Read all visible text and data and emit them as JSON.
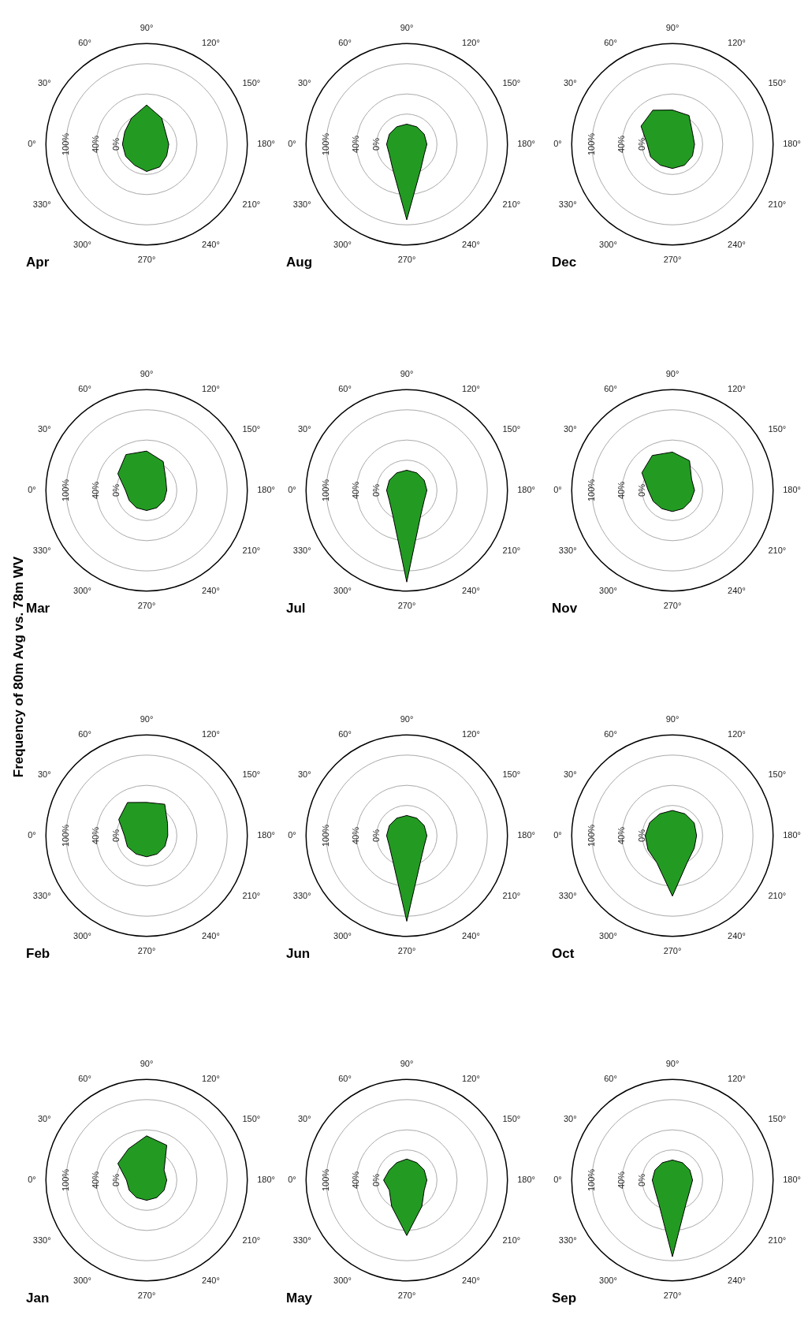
{
  "chart_data": [
    {
      "type": "other",
      "title": "Frequency of 80m Avg vs. 78m WV"
    },
    {
      "type": "radar",
      "title": "Jan",
      "categories": [
        "0°",
        "30°",
        "60°",
        "90°",
        "120°",
        "150°",
        "180°",
        "210°",
        "240°",
        "270°",
        "300°",
        "330°"
      ],
      "ylim": [
        -60,
        140
      ],
      "yticks": [
        {
          "value": 0,
          "label": "0%"
        },
        {
          "value": 40,
          "label": "40%"
        },
        {
          "value": 100,
          "label": "100%"
        }
      ],
      "grid": true,
      "series": [
        {
          "color": "#239b23",
          "values": [
            -20,
            6,
            12,
            28,
            20,
            -20,
            -20,
            -20,
            -20,
            -20,
            -20,
            -20
          ]
        }
      ]
    },
    {
      "type": "radar",
      "title": "Feb",
      "categories": [
        "0°",
        "30°",
        "60°",
        "90°",
        "120°",
        "150°",
        "180°",
        "210°",
        "240°",
        "270°",
        "300°",
        "330°"
      ],
      "ylim": [
        -60,
        140
      ],
      "yticks": [
        {
          "value": 0,
          "label": "0%"
        },
        {
          "value": 40,
          "label": "40%"
        },
        {
          "value": 100,
          "label": "100%"
        }
      ],
      "grid": true,
      "series": [
        {
          "color": "#239b23",
          "values": [
            -16,
            4,
            16,
            6,
            12,
            -12,
            -18,
            -18,
            -18,
            -18,
            -18,
            -16
          ]
        }
      ]
    },
    {
      "type": "radar",
      "title": "Mar",
      "categories": [
        "0°",
        "30°",
        "60°",
        "90°",
        "120°",
        "150°",
        "180°",
        "210°",
        "240°",
        "270°",
        "300°",
        "330°"
      ],
      "ylim": [
        -60,
        140
      ],
      "yticks": [
        {
          "value": 0,
          "label": "0%"
        },
        {
          "value": 40,
          "label": "40%"
        },
        {
          "value": 100,
          "label": "100%"
        }
      ],
      "grid": true,
      "series": [
        {
          "color": "#239b23",
          "values": [
            -18,
            6,
            22,
            18,
            6,
            -16,
            -20,
            -20,
            -20,
            -20,
            -20,
            -20
          ]
        }
      ]
    },
    {
      "type": "radar",
      "title": "Apr",
      "categories": [
        "0°",
        "30°",
        "60°",
        "90°",
        "120°",
        "150°",
        "180°",
        "210°",
        "240°",
        "270°",
        "300°",
        "330°"
      ],
      "ylim": [
        -60,
        140
      ],
      "yticks": [
        {
          "value": 0,
          "label": "0%"
        },
        {
          "value": 40,
          "label": "40%"
        },
        {
          "value": 100,
          "label": "100%"
        }
      ],
      "grid": true,
      "series": [
        {
          "color": "#239b23",
          "values": [
            -12,
            -10,
            0,
            18,
            0,
            -16,
            -16,
            -14,
            -8,
            -6,
            -12,
            -12
          ]
        }
      ]
    },
    {
      "type": "radar",
      "title": "May",
      "categories": [
        "0°",
        "30°",
        "60°",
        "90°",
        "120°",
        "150°",
        "180°",
        "210°",
        "240°",
        "270°",
        "300°",
        "330°"
      ],
      "ylim": [
        -60,
        140
      ],
      "yticks": [
        {
          "value": 0,
          "label": "0%"
        },
        {
          "value": 40,
          "label": "40%"
        },
        {
          "value": 100,
          "label": "100%"
        }
      ],
      "grid": true,
      "series": [
        {
          "color": "#239b23",
          "values": [
            -14,
            -20,
            -20,
            -18,
            -20,
            -20,
            -20,
            -20,
            0,
            50,
            0,
            -20
          ]
        }
      ]
    },
    {
      "type": "radar",
      "title": "Jun",
      "categories": [
        "0°",
        "30°",
        "60°",
        "90°",
        "120°",
        "150°",
        "180°",
        "210°",
        "240°",
        "270°",
        "300°",
        "330°"
      ],
      "ylim": [
        -60,
        140
      ],
      "yticks": [
        {
          "value": 0,
          "label": "0%"
        },
        {
          "value": 40,
          "label": "40%"
        },
        {
          "value": 100,
          "label": "100%"
        }
      ],
      "grid": true,
      "series": [
        {
          "color": "#239b23",
          "values": [
            -20,
            -20,
            -20,
            -20,
            -20,
            -20,
            -20,
            -20,
            -4,
            110,
            -4,
            -20
          ]
        }
      ]
    },
    {
      "type": "radar",
      "title": "Jul",
      "categories": [
        "0°",
        "30°",
        "60°",
        "90°",
        "120°",
        "150°",
        "180°",
        "210°",
        "240°",
        "270°",
        "300°",
        "330°"
      ],
      "ylim": [
        -60,
        140
      ],
      "yticks": [
        {
          "value": 0,
          "label": "0%"
        },
        {
          "value": 40,
          "label": "40%"
        },
        {
          "value": 100,
          "label": "100%"
        }
      ],
      "grid": true,
      "series": [
        {
          "color": "#239b23",
          "values": [
            -20,
            -20,
            -20,
            -20,
            -20,
            -20,
            -20,
            -20,
            -4,
            122,
            -4,
            -20
          ]
        }
      ]
    },
    {
      "type": "radar",
      "title": "Aug",
      "categories": [
        "0°",
        "30°",
        "60°",
        "90°",
        "120°",
        "150°",
        "180°",
        "210°",
        "240°",
        "270°",
        "300°",
        "330°"
      ],
      "ylim": [
        -60,
        140
      ],
      "yticks": [
        {
          "value": 0,
          "label": "0%"
        },
        {
          "value": 40,
          "label": "40%"
        },
        {
          "value": 100,
          "label": "100%"
        }
      ],
      "grid": true,
      "series": [
        {
          "color": "#239b23",
          "values": [
            -20,
            -20,
            -20,
            -20,
            -20,
            -20,
            -20,
            -20,
            -4,
            90,
            -4,
            -20
          ]
        }
      ]
    },
    {
      "type": "radar",
      "title": "Sep",
      "categories": [
        "0°",
        "30°",
        "60°",
        "90°",
        "120°",
        "150°",
        "180°",
        "210°",
        "240°",
        "270°",
        "300°",
        "330°"
      ],
      "ylim": [
        -60,
        140
      ],
      "yticks": [
        {
          "value": 0,
          "label": "0%"
        },
        {
          "value": 40,
          "label": "40%"
        },
        {
          "value": 100,
          "label": "100%"
        }
      ],
      "grid": true,
      "series": [
        {
          "color": "#239b23",
          "values": [
            -20,
            -20,
            -20,
            -20,
            -20,
            -20,
            -20,
            -20,
            -6,
            92,
            -6,
            -20
          ]
        }
      ]
    },
    {
      "type": "radar",
      "title": "Oct",
      "categories": [
        "0°",
        "30°",
        "60°",
        "90°",
        "120°",
        "150°",
        "180°",
        "210°",
        "240°",
        "270°",
        "300°",
        "330°"
      ],
      "ylim": [
        -60,
        140
      ],
      "yticks": [
        {
          "value": 0,
          "label": "0%"
        },
        {
          "value": 40,
          "label": "40%"
        },
        {
          "value": 100,
          "label": "100%"
        }
      ],
      "grid": true,
      "series": [
        {
          "color": "#239b23",
          "values": [
            -6,
            -8,
            -10,
            -10,
            -10,
            -10,
            -12,
            -10,
            0,
            60,
            2,
            -4
          ]
        }
      ]
    },
    {
      "type": "radar",
      "title": "Nov",
      "categories": [
        "0°",
        "30°",
        "60°",
        "90°",
        "120°",
        "150°",
        "180°",
        "210°",
        "240°",
        "270°",
        "300°",
        "330°"
      ],
      "ylim": [
        -60,
        140
      ],
      "yticks": [
        {
          "value": 0,
          "label": "0%"
        },
        {
          "value": 40,
          "label": "40%"
        },
        {
          "value": 100,
          "label": "100%"
        }
      ],
      "grid": true,
      "series": [
        {
          "color": "#239b23",
          "values": [
            -12,
            10,
            20,
            16,
            8,
            -16,
            -16,
            -18,
            -18,
            -18,
            -18,
            -16
          ]
        }
      ]
    },
    {
      "type": "radar",
      "title": "Dec",
      "categories": [
        "0°",
        "30°",
        "60°",
        "90°",
        "120°",
        "150°",
        "180°",
        "210°",
        "240°",
        "270°",
        "300°",
        "330°"
      ],
      "ylim": [
        -60,
        140
      ],
      "yticks": [
        {
          "value": 0,
          "label": "0%"
        },
        {
          "value": 40,
          "label": "40%"
        },
        {
          "value": 100,
          "label": "100%"
        }
      ],
      "grid": true,
      "series": [
        {
          "color": "#239b23",
          "values": [
            -10,
            12,
            18,
            8,
            6,
            -14,
            -16,
            -14,
            -12,
            -12,
            -12,
            -10
          ]
        }
      ]
    }
  ]
}
